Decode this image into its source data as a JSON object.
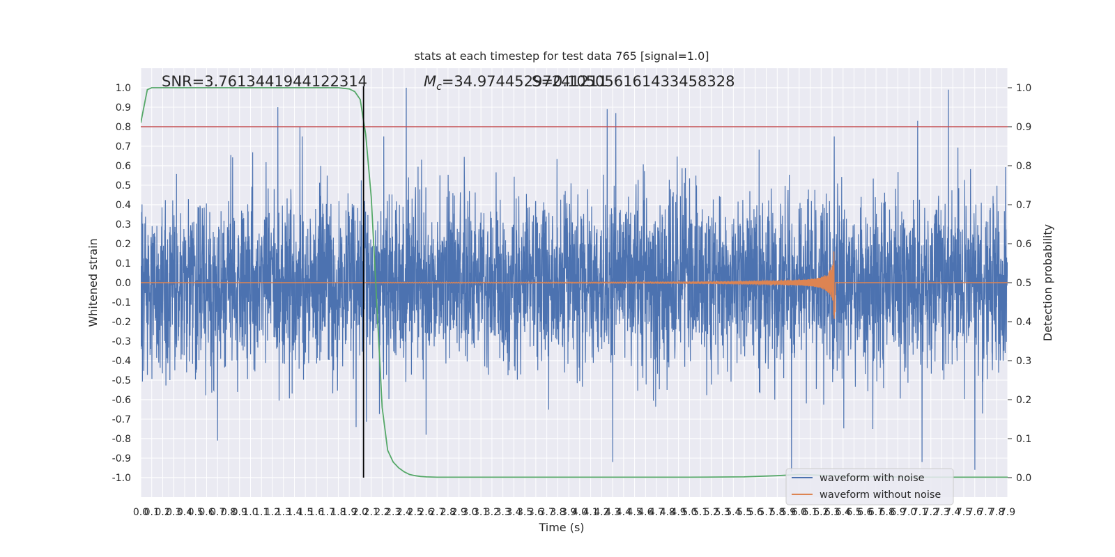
{
  "chart_data": {
    "type": "line",
    "title": "stats at each timestep for test data 765 [signal=1.0]",
    "xlabel": "Time (s)",
    "ylabel": "Whitened strain",
    "y2label": "Detection probability",
    "xlim": [
      0.0,
      7.9
    ],
    "ylim": [
      -1.1,
      1.1
    ],
    "y2lim": [
      -0.05,
      1.05
    ],
    "x_step": 0.1,
    "y_step": 0.1,
    "x_tick_labels": [
      "0.0",
      "0.1",
      "0.2",
      "0.3",
      "0.4",
      "0.5",
      "0.6",
      "0.7",
      "0.8",
      "0.9",
      "1.0",
      "1.1",
      "1.2",
      "1.3",
      "1.4",
      "1.5",
      "1.6",
      "1.7",
      "1.8",
      "1.9",
      "2.0",
      "2.1",
      "2.2",
      "2.3",
      "2.4",
      "2.5",
      "2.6",
      "2.7",
      "2.8",
      "2.9",
      "3.0",
      "3.1",
      "3.2",
      "3.3",
      "3.4",
      "3.5",
      "3.6",
      "3.7",
      "3.8",
      "3.9",
      "4.0",
      "4.1",
      "4.2",
      "4.3",
      "4.4",
      "4.5",
      "4.6",
      "4.7",
      "4.8",
      "4.9",
      "5.0",
      "5.1",
      "5.2",
      "5.3",
      "5.4",
      "5.5",
      "5.6",
      "5.7",
      "5.8",
      "5.9",
      "6.0",
      "6.1",
      "6.2",
      "6.3",
      "6.4",
      "6.5",
      "6.6",
      "6.7",
      "6.8",
      "6.9",
      "7.0",
      "7.1",
      "7.2",
      "7.3",
      "7.4",
      "7.5",
      "7.6",
      "7.7",
      "7.8",
      "7.9"
    ],
    "y_tick_labels": [
      "1.0",
      "0.9",
      "0.8",
      "0.7",
      "0.6",
      "0.5",
      "0.4",
      "0.3",
      "0.2",
      "0.1",
      "0.0",
      "-0.1",
      "-0.2",
      "-0.3",
      "-0.4",
      "-0.5",
      "-0.6",
      "-0.7",
      "-0.8",
      "-0.9",
      "-1.0"
    ],
    "y2_tick_labels": [
      "1.0",
      "0.9",
      "0.8",
      "0.7",
      "0.6",
      "0.5",
      "0.4",
      "0.3",
      "0.2",
      "0.1",
      "0.0"
    ],
    "grid": true,
    "legend_position": "bottom-right",
    "annotations": {
      "snr": "SNR=3.7613441944122314",
      "mc": "=34.97445297241211",
      "mc_symbol": "M",
      "mc_subscript": "c",
      "overlap": "S=0.10505616143345832​8"
    },
    "series": [
      {
        "name": "waveform with noise",
        "color": "#4c72b0",
        "axis": "left",
        "description_points": {
          "x_range": [
            0.0,
            7.9
          ],
          "envelope_upper_typical": 0.45,
          "envelope_lower_typical": -0.45,
          "peaks": [
            [
              1.25,
              0.9
            ],
            [
              1.45,
              0.8
            ],
            [
              2.42,
              1.0
            ],
            [
              4.25,
              0.89
            ],
            [
              4.33,
              0.87
            ],
            [
              7.08,
              0.83
            ],
            [
              7.36,
              0.99
            ],
            [
              0.7,
              -0.81
            ],
            [
              2.6,
              -0.78
            ],
            [
              4.3,
              -0.92
            ],
            [
              5.93,
              -0.97
            ],
            [
              7.6,
              -0.96
            ],
            [
              7.12,
              -0.92
            ]
          ]
        }
      },
      {
        "name": "waveform without noise",
        "color": "#dd8452",
        "axis": "left",
        "chirp": {
          "x_start": 2.2,
          "x_merger": 6.32,
          "x_end": 6.33,
          "peak_amplitude": 0.23
        }
      },
      {
        "name": "",
        "color": "#55a868",
        "axis": "right",
        "x": [
          0.0,
          0.06,
          0.1,
          0.2,
          0.5,
          1.0,
          1.5,
          1.8,
          1.9,
          1.95,
          2.0,
          2.05,
          2.1,
          2.15,
          2.2,
          2.25,
          2.3,
          2.35,
          2.4,
          2.45,
          2.5,
          2.55,
          2.6,
          2.7,
          3.0,
          4.0,
          5.0,
          5.5,
          5.8,
          6.0,
          6.5,
          7.0,
          7.5,
          7.9
        ],
        "values": [
          0.91,
          0.995,
          1.0,
          1.0,
          1.0,
          1.0,
          1.0,
          1.0,
          0.997,
          0.99,
          0.97,
          0.88,
          0.72,
          0.45,
          0.18,
          0.07,
          0.04,
          0.025,
          0.015,
          0.008,
          0.005,
          0.003,
          0.002,
          0.001,
          0.001,
          0.001,
          0.001,
          0.002,
          0.005,
          0.008,
          0.003,
          0.001,
          0.001,
          0.001
        ]
      }
    ],
    "threshold_line": {
      "color": "#c44e52",
      "value_right_axis": 0.9
    },
    "vertical_marker": {
      "color": "#000000",
      "x": 2.03
    }
  }
}
